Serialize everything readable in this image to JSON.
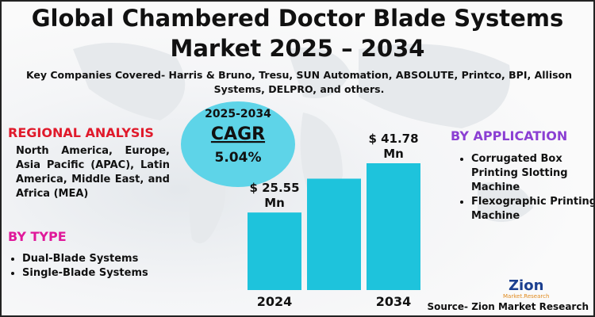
{
  "title": "Global Chambered Doctor Blade Systems Market 2025 – 2034",
  "subtitle": "Key Companies Covered- Harris & Bruno, Tresu, SUN Automation, ABSOLUTE, Printco, BPI, Allison Systems, DELPRO, and others.",
  "cagr": {
    "period": "2025-2034",
    "label": "CAGR",
    "value": "5.04%"
  },
  "regional": {
    "heading": "REGIONAL ANALYSIS",
    "text": "North America, Europe, Asia Pacific (APAC), Latin America, Middle East, and Africa (MEA)"
  },
  "by_type": {
    "heading": "BY TYPE",
    "items": [
      "Dual-Blade Systems",
      "Single-Blade Systems"
    ]
  },
  "by_application": {
    "heading": "BY APPLICATION",
    "items": [
      "Corrugated Box Printing Slotting Machine",
      "Flexographic Printing Machine"
    ]
  },
  "logo": {
    "name": "Zion",
    "tagline": "Market.Research"
  },
  "source": "Source- Zion Market Research",
  "chart_data": {
    "type": "bar",
    "categories": [
      "2024",
      null,
      "2034"
    ],
    "values": [
      25.55,
      36.7,
      41.78
    ],
    "value_labels": [
      "$ 25.55 Mn",
      null,
      "$ 41.78 Mn"
    ],
    "color": "#1ec3dc"
  }
}
